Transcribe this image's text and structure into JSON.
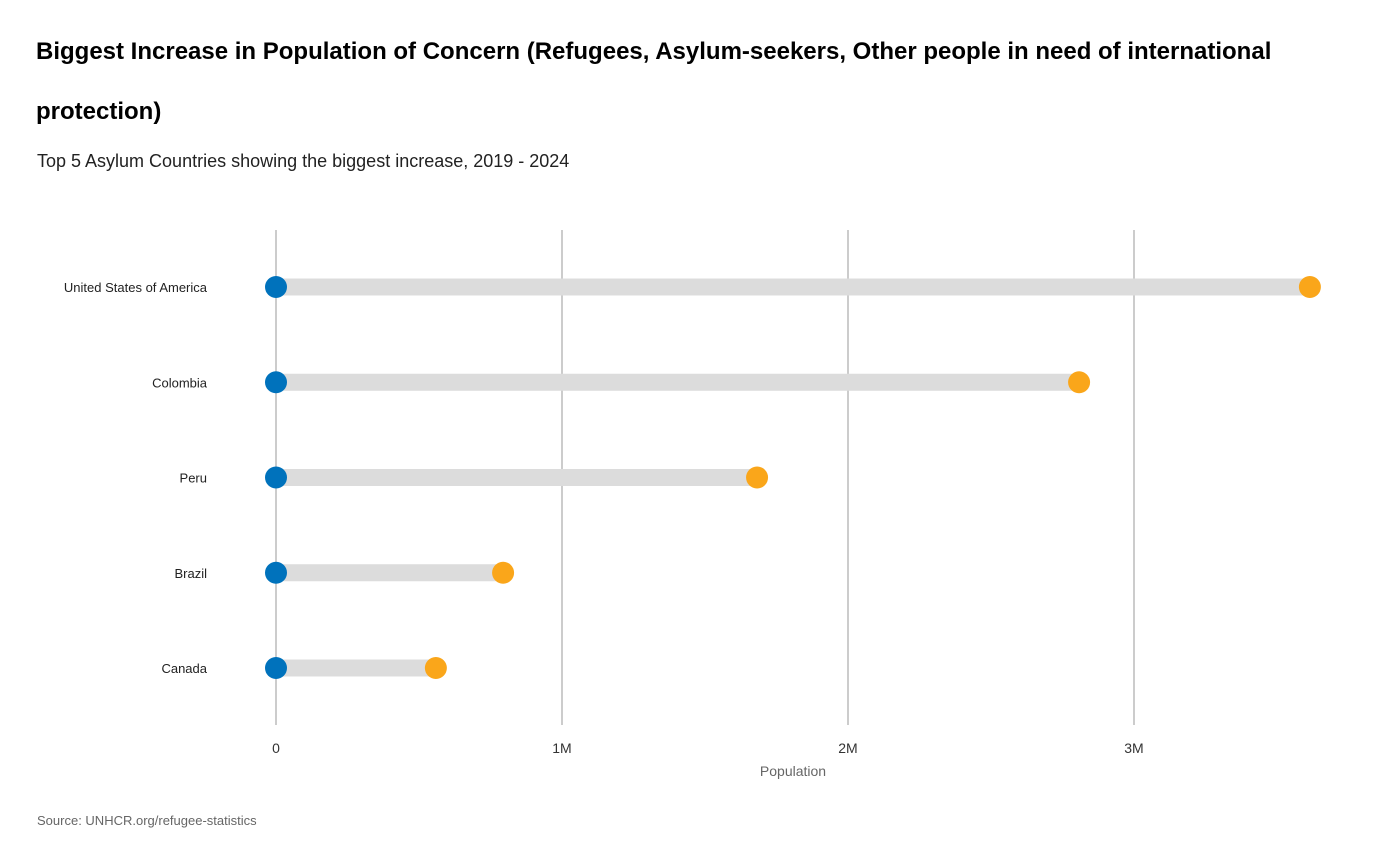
{
  "chart_data": {
    "type": "dumbbell",
    "title": "Biggest Increase in Population of Concern (Refugees, Asylum-seekers, Other people in need of international protection)",
    "subtitle": "Top 5 Asylum Countries showing the biggest increase, 2019 - 2024",
    "source": "Source: UNHCR.org/refugee-statistics",
    "xlabel": "Population",
    "xlim": [
      0,
      3800000
    ],
    "xticks": [
      0,
      1000000,
      2000000,
      3000000
    ],
    "xtick_labels": [
      "0",
      "1M",
      "2M",
      "3M"
    ],
    "grid": "vertical",
    "categories": [
      "United States of America",
      "Colombia",
      "Peru",
      "Brazil",
      "Canada"
    ],
    "series": [
      {
        "name": "2019",
        "color": "#0072BC",
        "values": [
          0,
          0,
          0,
          0,
          0
        ]
      },
      {
        "name": "2024",
        "color": "#FAA61A",
        "values": [
          3615000,
          2808000,
          1682000,
          794000,
          559000
        ]
      }
    ],
    "bar_color": "#DCDCDC"
  }
}
